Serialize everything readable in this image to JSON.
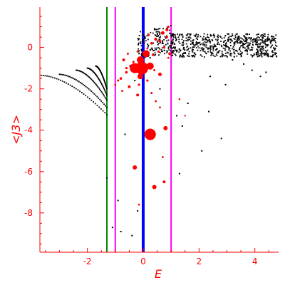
{
  "chart_data": {
    "type": "scatter",
    "title": "",
    "xlabel": "E",
    "ylabel": "<J3>",
    "xlim": [
      -3.7,
      4.85
    ],
    "ylim": [
      -9.9,
      1.95
    ],
    "xticks": [
      -2,
      0,
      2,
      4
    ],
    "xtick_labels": [
      "-2",
      "0",
      "2",
      "4"
    ],
    "yticks": [
      0,
      -2,
      -4,
      -6,
      -8
    ],
    "ytick_labels": [
      "0",
      "-2",
      "-4",
      "-6",
      "-8"
    ],
    "grid": false,
    "colors": {
      "axis": "#ff0000",
      "black_points": "#000000",
      "red_points": "#ff0000",
      "green_line": "#008000",
      "blue_line": "#0000ff",
      "magenta_line": "#ff00ff"
    },
    "vertical_lines": [
      {
        "x": -1.3,
        "color": "#008000"
      },
      {
        "x": -1.0,
        "color": "#ff00ff"
      },
      {
        "x": 0.0,
        "color": "#0000ff"
      },
      {
        "x": 1.0,
        "color": "#ff00ff"
      }
    ],
    "series": [
      {
        "kind": "continuum",
        "color": "#000000",
        "x_range": [
          1.0,
          4.8
        ],
        "y_center": 0.1,
        "y_spread": 0.5
      },
      {
        "kind": "arcs",
        "color": "#000000",
        "arcs": [
          {
            "x_start": -3.65,
            "x_end": -1.3,
            "y_start": -1.35,
            "y_end": -3.25
          },
          {
            "x_start": -3.0,
            "x_end": -1.3,
            "y_start": -1.3,
            "y_end": -2.9
          },
          {
            "x_start": -2.4,
            "x_end": -1.3,
            "y_start": -1.1,
            "y_end": -2.55
          },
          {
            "x_start": -2.0,
            "x_end": -1.3,
            "y_start": -1.0,
            "y_end": -2.3
          },
          {
            "x_start": -1.7,
            "x_end": -1.3,
            "y_start": -0.9,
            "y_end": -2.0
          }
        ]
      },
      {
        "kind": "points",
        "color": "#000000",
        "points": [
          [
            -0.65,
            -4.2
          ],
          [
            -1.3,
            -6.3
          ],
          [
            -1.1,
            -8.7
          ],
          [
            -0.8,
            -8.9
          ],
          [
            -0.4,
            -9.1
          ],
          [
            -0.9,
            -7.4
          ],
          [
            -0.2,
            -7.9
          ],
          [
            1.4,
            -3.8
          ],
          [
            1.6,
            -2.7
          ],
          [
            2.1,
            -5.0
          ],
          [
            2.35,
            -3.1
          ],
          [
            2.8,
            -4.4
          ],
          [
            2.4,
            -1.4
          ],
          [
            2.95,
            -1.8
          ],
          [
            3.6,
            -0.8
          ],
          [
            3.9,
            -1.1
          ],
          [
            4.2,
            -1.4
          ],
          [
            4.4,
            -1.2
          ],
          [
            1.3,
            -6.1
          ],
          [
            0.6,
            -2.0
          ],
          [
            -0.3,
            -1.6
          ],
          [
            0.25,
            -0.5
          ],
          [
            1.2,
            -3.3
          ],
          [
            3.2,
            -0.6
          ]
        ]
      },
      {
        "kind": "bubbles",
        "color": "#ff0000",
        "points": [
          [
            0.25,
            -4.2,
            8
          ],
          [
            -0.05,
            -1.0,
            9
          ],
          [
            -0.3,
            -1.0,
            7
          ],
          [
            0.25,
            -0.9,
            5
          ],
          [
            -0.1,
            -0.6,
            5
          ],
          [
            -0.1,
            -1.4,
            4
          ],
          [
            0.1,
            -0.3,
            5
          ],
          [
            0.8,
            -3.9,
            3
          ],
          [
            -0.3,
            -5.8,
            3
          ],
          [
            0.4,
            -6.75,
            3
          ],
          [
            0.75,
            -6.5,
            2
          ],
          [
            0.6,
            -1.3,
            2.5
          ],
          [
            0.95,
            -0.3,
            2
          ],
          [
            -0.7,
            -0.6,
            2
          ],
          [
            -0.5,
            -1.9,
            2
          ],
          [
            -0.2,
            -2.3,
            2
          ],
          [
            0.7,
            0.7,
            2.5
          ],
          [
            0.85,
            0.85,
            2
          ],
          [
            -0.8,
            -1.5,
            1.8
          ],
          [
            -0.6,
            -1.2,
            1.8
          ],
          [
            0.3,
            0.2,
            1.8
          ],
          [
            0.45,
            0.4,
            2.2
          ],
          [
            0.6,
            0.3,
            1.8
          ],
          [
            -0.45,
            -0.9,
            2
          ],
          [
            -0.35,
            -0.7,
            1.6
          ],
          [
            0.15,
            -1.6,
            1.6
          ],
          [
            -0.15,
            -1.8,
            1.6
          ],
          [
            0.55,
            -0.2,
            1.6
          ],
          [
            0.35,
            -0.35,
            1.6
          ],
          [
            0.75,
            0.0,
            1.6
          ],
          [
            -0.9,
            -1.6,
            1.5
          ],
          [
            -0.55,
            -0.3,
            1.5
          ],
          [
            0.3,
            -2.2,
            1.5
          ],
          [
            0.45,
            -2.6,
            1.4
          ],
          [
            0.6,
            -2.9,
            1.4
          ],
          [
            0.7,
            -5.3,
            1.4
          ],
          [
            -0.15,
            -7.6,
            1.3
          ],
          [
            1.3,
            -2.5,
            1.3
          ],
          [
            1.5,
            -3.3,
            1.2
          ],
          [
            0.85,
            0.5,
            1.6
          ],
          [
            0.9,
            1.0,
            1.6
          ],
          [
            0.2,
            0.6,
            1.5
          ],
          [
            -0.2,
            -0.2,
            1.5
          ],
          [
            -1.0,
            -1.8,
            1.4
          ],
          [
            -0.75,
            -2.1,
            1.4
          ],
          [
            0.4,
            -1.1,
            1.5
          ],
          [
            0.05,
            -0.8,
            1.6
          ],
          [
            -0.6,
            -1.0,
            1.6
          ],
          [
            0.15,
            -0.05,
            1.4
          ],
          [
            0.9,
            -0.5,
            1.4
          ]
        ]
      }
    ]
  }
}
